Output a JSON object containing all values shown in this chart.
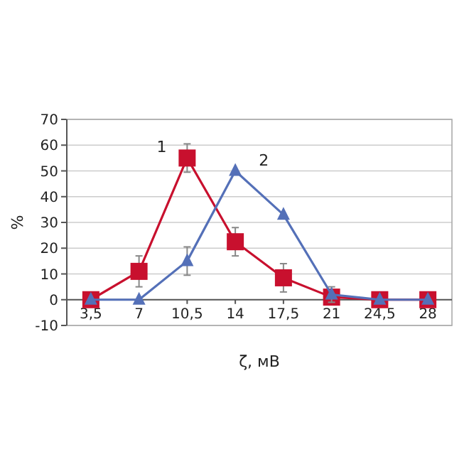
{
  "chart_data": {
    "type": "line",
    "xlabel": "ζ, мВ",
    "ylabel": "%",
    "categories": [
      "3,5",
      "7",
      "10,5",
      "14",
      "17,5",
      "21",
      "24,5",
      "28"
    ],
    "ylim": [
      -10,
      70
    ],
    "yticks": [
      -10,
      0,
      10,
      20,
      30,
      40,
      50,
      60,
      70
    ],
    "grid": "y",
    "line_style": "solid",
    "series": [
      {
        "name": "1",
        "color": "#c8102e",
        "marker": "square",
        "values": [
          0,
          11,
          55,
          22.5,
          8.5,
          1,
          0,
          0
        ],
        "errors": [
          null,
          6,
          5.5,
          5.5,
          5.5,
          2,
          null,
          null
        ]
      },
      {
        "name": "2",
        "color": "#5470b8",
        "marker": "triangle",
        "values": [
          0,
          0,
          15,
          50,
          33,
          2,
          0,
          0
        ],
        "errors": [
          null,
          null,
          5.5,
          null,
          null,
          3,
          null,
          null
        ]
      }
    ]
  }
}
